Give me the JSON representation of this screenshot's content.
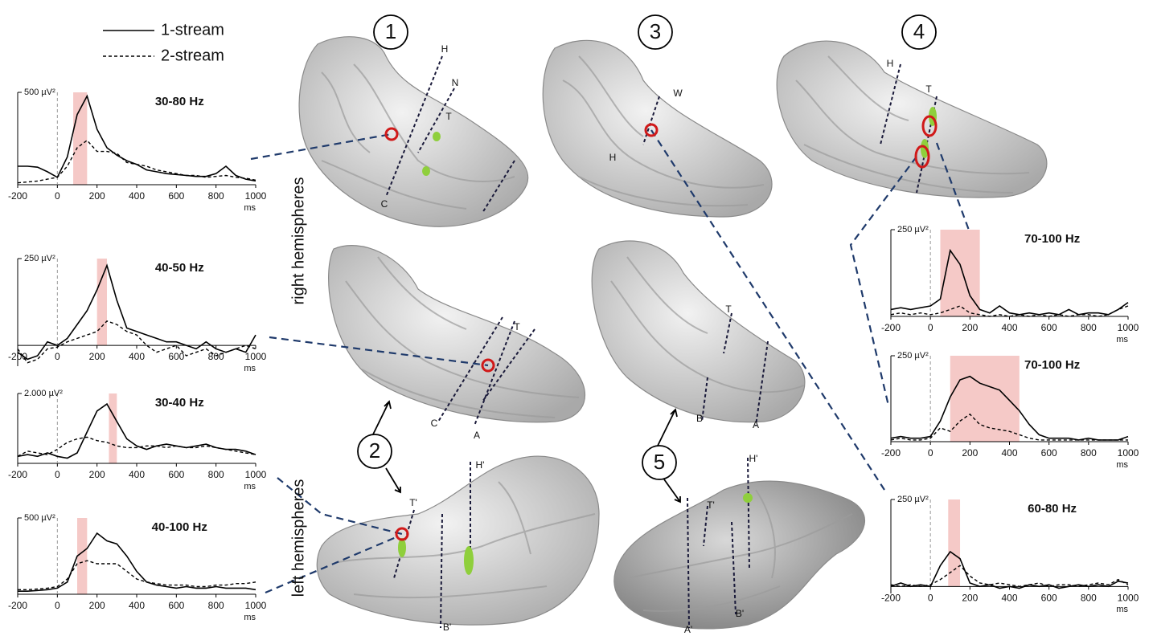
{
  "legend": [
    {
      "name": "1-stream",
      "dash": false
    },
    {
      "name": "2-stream",
      "dash": true
    }
  ],
  "figure": {
    "panels": [
      "1",
      "3",
      "4",
      "2",
      "5"
    ],
    "side_labels": [
      "right hemispheres",
      "left hemispheres"
    ],
    "labels": [
      "H",
      "N",
      "T",
      "C",
      "W",
      "H",
      "H",
      "T",
      "T",
      "C",
      "A",
      "T",
      "B",
      "A",
      "H'",
      "T'",
      "B'",
      "H'",
      "T'",
      "A'",
      "B'"
    ]
  },
  "chart_data": [
    {
      "type": "line",
      "title": "30-80 Hz",
      "xlabel": "ms",
      "x": [
        -200,
        -150,
        -100,
        -50,
        0,
        50,
        100,
        150,
        200,
        250,
        300,
        350,
        400,
        450,
        500,
        550,
        600,
        650,
        700,
        750,
        800,
        850,
        900,
        950,
        1000
      ],
      "xlim": [
        -200,
        1000
      ],
      "xticks": [
        -200,
        0,
        200,
        400,
        600,
        800,
        1000
      ],
      "ylim": [
        0,
        500
      ],
      "yticks": [
        {
          "value": 500,
          "label": "500 µV²"
        }
      ],
      "highlight": [
        80,
        150
      ],
      "series": [
        {
          "values": [
            100,
            100,
            95,
            70,
            40,
            150,
            380,
            480,
            300,
            200,
            160,
            130,
            110,
            80,
            70,
            60,
            55,
            50,
            45,
            45,
            60,
            100,
            50,
            30,
            20
          ]
        },
        {
          "values": [
            10,
            15,
            20,
            30,
            40,
            100,
            200,
            240,
            180,
            180,
            170,
            120,
            110,
            100,
            80,
            70,
            60,
            50,
            50,
            40,
            45,
            50,
            40,
            35,
            25
          ]
        }
      ]
    },
    {
      "type": "line",
      "title": "40-50 Hz",
      "xlabel": "ms",
      "x": [
        -200,
        -150,
        -100,
        -50,
        0,
        50,
        100,
        150,
        200,
        250,
        300,
        350,
        400,
        450,
        500,
        550,
        600,
        650,
        700,
        750,
        800,
        850,
        900,
        950,
        1000
      ],
      "xlim": [
        -200,
        1000
      ],
      "xticks": [
        -200,
        0,
        200,
        400,
        600,
        800,
        1000
      ],
      "ylim": [
        -60,
        250
      ],
      "yticks": [
        {
          "value": 250,
          "label": "250 µV²"
        }
      ],
      "highlight": [
        200,
        250
      ],
      "series": [
        {
          "values": [
            -20,
            -40,
            -30,
            10,
            0,
            20,
            60,
            100,
            160,
            230,
            130,
            50,
            40,
            30,
            20,
            10,
            10,
            0,
            -10,
            10,
            -10,
            -20,
            -10,
            -20,
            30
          ]
        },
        {
          "values": [
            -10,
            -50,
            -40,
            -10,
            -5,
            10,
            20,
            30,
            40,
            70,
            60,
            40,
            30,
            0,
            -20,
            -10,
            0,
            -30,
            -20,
            -10,
            -30,
            -20,
            -10,
            0,
            -10
          ]
        }
      ]
    },
    {
      "type": "line",
      "title": "30-40 Hz",
      "xlabel": "ms",
      "x": [
        -200,
        -150,
        -100,
        -50,
        0,
        50,
        100,
        150,
        200,
        250,
        300,
        350,
        400,
        450,
        500,
        550,
        600,
        650,
        700,
        750,
        800,
        850,
        900,
        950,
        1000
      ],
      "xlim": [
        -200,
        1000
      ],
      "xticks": [
        -200,
        0,
        200,
        400,
        600,
        800,
        1000
      ],
      "ylim": [
        0,
        2000
      ],
      "yticks": [
        {
          "value": 2000,
          "label": "2.000 µV²"
        }
      ],
      "highlight": [
        260,
        300
      ],
      "series": [
        {
          "values": [
            200,
            250,
            200,
            300,
            200,
            150,
            300,
            900,
            1500,
            1700,
            1200,
            700,
            500,
            400,
            500,
            550,
            500,
            450,
            500,
            550,
            450,
            400,
            400,
            350,
            250
          ]
        },
        {
          "values": [
            200,
            350,
            300,
            250,
            400,
            600,
            700,
            750,
            650,
            600,
            500,
            450,
            450,
            500,
            500,
            450,
            500,
            450,
            450,
            500,
            450,
            400,
            350,
            300,
            250
          ]
        }
      ]
    },
    {
      "type": "line",
      "title": "40-100 Hz",
      "xlabel": "ms",
      "x": [
        -200,
        -150,
        -100,
        -50,
        0,
        50,
        100,
        150,
        200,
        250,
        300,
        350,
        400,
        450,
        500,
        550,
        600,
        650,
        700,
        750,
        800,
        850,
        900,
        950,
        1000
      ],
      "xlim": [
        -200,
        1000
      ],
      "xticks": [
        -200,
        0,
        200,
        400,
        600,
        800,
        1000
      ],
      "ylim": [
        0,
        500
      ],
      "yticks": [
        {
          "value": 500,
          "label": "500 µV²"
        }
      ],
      "highlight": [
        100,
        150
      ],
      "series": [
        {
          "values": [
            20,
            20,
            25,
            30,
            40,
            80,
            250,
            300,
            400,
            350,
            330,
            250,
            150,
            80,
            60,
            50,
            40,
            50,
            40,
            40,
            50,
            40,
            40,
            40,
            30
          ]
        },
        {
          "values": [
            30,
            30,
            35,
            40,
            50,
            100,
            200,
            220,
            200,
            200,
            200,
            150,
            100,
            80,
            70,
            60,
            60,
            60,
            50,
            50,
            60,
            60,
            70,
            70,
            80
          ]
        }
      ]
    },
    {
      "type": "line",
      "title": "70-100 Hz",
      "xlabel": "ms",
      "x": [
        -200,
        -150,
        -100,
        -50,
        0,
        50,
        100,
        150,
        200,
        250,
        300,
        350,
        400,
        450,
        500,
        550,
        600,
        650,
        700,
        750,
        800,
        850,
        900,
        950,
        1000
      ],
      "xlim": [
        -200,
        1000
      ],
      "xticks": [
        -200,
        0,
        200,
        400,
        600,
        800,
        1000
      ],
      "ylim": [
        0,
        250
      ],
      "yticks": [
        {
          "value": 250,
          "label": "250 µV²"
        }
      ],
      "highlight": [
        50,
        250
      ],
      "series": [
        {
          "values": [
            20,
            25,
            20,
            25,
            30,
            50,
            190,
            150,
            60,
            20,
            10,
            30,
            10,
            5,
            10,
            5,
            10,
            5,
            20,
            5,
            10,
            10,
            5,
            20,
            40
          ]
        },
        {
          "values": [
            5,
            10,
            5,
            10,
            5,
            10,
            20,
            30,
            10,
            5,
            0,
            5,
            0,
            5,
            0,
            5,
            0,
            5,
            0,
            5,
            5,
            0,
            5,
            20,
            30
          ]
        }
      ]
    },
    {
      "type": "line",
      "title": "70-100 Hz",
      "xlabel": "ms",
      "x": [
        -200,
        -150,
        -100,
        -50,
        0,
        50,
        100,
        150,
        200,
        250,
        300,
        350,
        400,
        450,
        500,
        550,
        600,
        650,
        700,
        750,
        800,
        850,
        900,
        950,
        1000
      ],
      "xlim": [
        -200,
        1000
      ],
      "xticks": [
        -200,
        0,
        200,
        400,
        600,
        800,
        1000
      ],
      "ylim": [
        0,
        250
      ],
      "yticks": [
        {
          "value": 250,
          "label": "250 µV²"
        }
      ],
      "highlight": [
        100,
        450
      ],
      "series": [
        {
          "values": [
            10,
            15,
            10,
            10,
            15,
            60,
            130,
            180,
            190,
            170,
            160,
            150,
            120,
            90,
            50,
            20,
            10,
            10,
            10,
            5,
            10,
            5,
            5,
            5,
            15
          ]
        },
        {
          "values": [
            5,
            10,
            5,
            5,
            10,
            40,
            30,
            60,
            80,
            50,
            40,
            35,
            30,
            20,
            10,
            5,
            5,
            5,
            5,
            5,
            5,
            5,
            5,
            5,
            5
          ]
        }
      ]
    },
    {
      "type": "line",
      "title": "60-80 Hz",
      "xlabel": "ms",
      "x": [
        -200,
        -150,
        -100,
        -50,
        0,
        50,
        100,
        150,
        200,
        250,
        300,
        350,
        400,
        450,
        500,
        550,
        600,
        650,
        700,
        750,
        800,
        850,
        900,
        950,
        1000
      ],
      "xlim": [
        -200,
        1000
      ],
      "xticks": [
        -200,
        0,
        200,
        400,
        600,
        800,
        1000
      ],
      "ylim": [
        -20,
        250
      ],
      "yticks": [
        {
          "value": 250,
          "label": "250 µV²"
        }
      ],
      "highlight": [
        90,
        150
      ],
      "series": [
        {
          "values": [
            0,
            10,
            0,
            5,
            0,
            60,
            100,
            80,
            10,
            0,
            5,
            -5,
            0,
            -5,
            5,
            0,
            5,
            -5,
            0,
            5,
            0,
            5,
            0,
            15,
            10
          ]
        },
        {
          "values": [
            5,
            0,
            5,
            0,
            5,
            20,
            40,
            60,
            30,
            10,
            5,
            10,
            5,
            0,
            5,
            10,
            0,
            5,
            5,
            0,
            5,
            10,
            5,
            20,
            5
          ]
        }
      ]
    }
  ]
}
